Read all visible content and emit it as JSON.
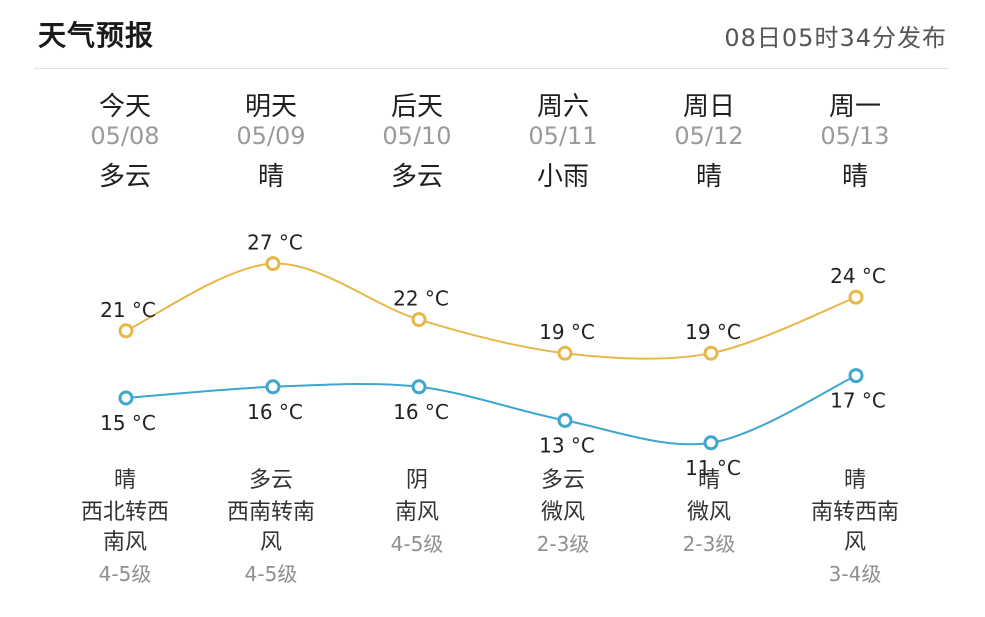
{
  "header": {
    "title": "天气预报",
    "publish_time": "08日05时34分发布"
  },
  "days": [
    {
      "day": "今天",
      "date": "05/08",
      "condition": "多云",
      "night_condition": "晴",
      "wind_dir_1": "西北转西",
      "wind_dir_2": "南风",
      "wind_level": "4-5级"
    },
    {
      "day": "明天",
      "date": "05/09",
      "condition": "晴",
      "night_condition": "多云",
      "wind_dir_1": "西南转南",
      "wind_dir_2": "风",
      "wind_level": "4-5级"
    },
    {
      "day": "后天",
      "date": "05/10",
      "condition": "多云",
      "night_condition": "阴",
      "wind_dir_1": "南风",
      "wind_dir_2": "",
      "wind_level": "4-5级"
    },
    {
      "day": "周六",
      "date": "05/11",
      "condition": "小雨",
      "night_condition": "多云",
      "wind_dir_1": "微风",
      "wind_dir_2": "",
      "wind_level": "2-3级"
    },
    {
      "day": "周日",
      "date": "05/12",
      "condition": "晴",
      "night_condition": "晴",
      "wind_dir_1": "微风",
      "wind_dir_2": "",
      "wind_level": "2-3级"
    },
    {
      "day": "周一",
      "date": "05/13",
      "condition": "晴",
      "night_condition": "晴",
      "wind_dir_1": "南转西南",
      "wind_dir_2": "风",
      "wind_level": "3-4级"
    }
  ],
  "temperature_chart": {
    "high_color": "#e8b74a",
    "low_color": "#3fa7cf",
    "high_labels": [
      "21 °C",
      "27 °C",
      "22 °C",
      "19 °C",
      "19 °C",
      "24 °C"
    ],
    "low_labels": [
      "15 °C",
      "16 °C",
      "16 °C",
      "13 °C",
      "11 °C",
      "17 °C"
    ]
  },
  "chart_data": {
    "type": "line",
    "categories": [
      "05/08",
      "05/09",
      "05/10",
      "05/11",
      "05/12",
      "05/13"
    ],
    "series": [
      {
        "values": [
          21,
          27,
          22,
          19,
          19,
          24
        ]
      },
      {
        "values": [
          15,
          16,
          16,
          13,
          11,
          17
        ]
      }
    ],
    "unit": "°C"
  }
}
